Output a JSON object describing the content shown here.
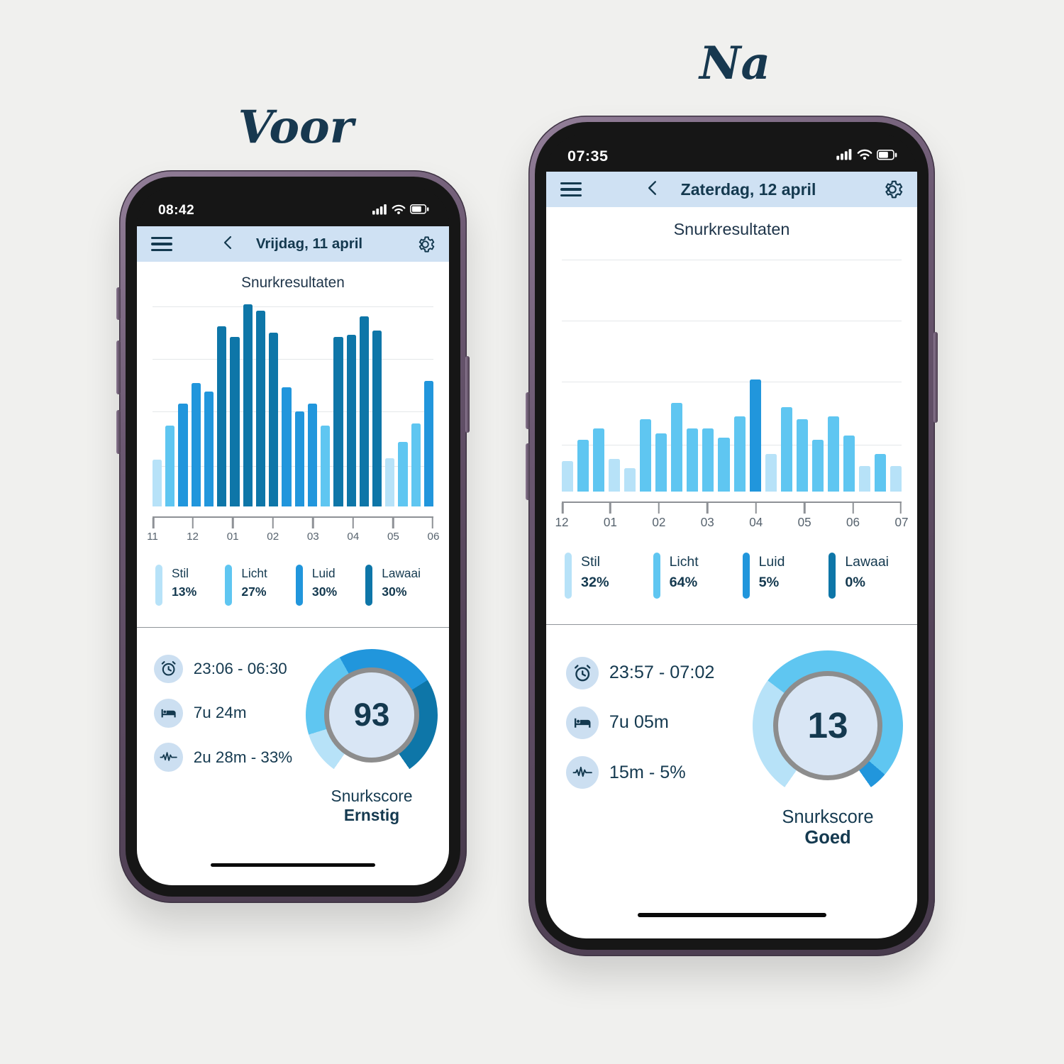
{
  "page": {
    "title_before": "Voor",
    "title_after": "Na"
  },
  "colors": {
    "stil": "#b7e2f8",
    "licht": "#5fc6f1",
    "luid": "#2196dc",
    "lawaai": "#0e76a8",
    "navy": "#14394f",
    "header_bg": "#cfe1f3",
    "gauge_center": "#d9e6f5",
    "gauge_border": "#8d8d8d"
  },
  "icons": {
    "menu": "hamburger-menu",
    "back": "chevron-left",
    "settings": "gear",
    "status": [
      "signal-bars",
      "wifi",
      "battery"
    ],
    "stats": [
      "alarm-clock",
      "bed",
      "sound-wave"
    ]
  },
  "phones": [
    {
      "id": "before",
      "status": {
        "time": "08:42"
      },
      "header": {
        "date": "Vrijdag, 11 april"
      },
      "screen_title": "Snurkresultaten",
      "chart_data": {
        "type": "bar",
        "title": "Snurkresultaten",
        "x_ticks": [
          "11",
          "12",
          "01",
          "02",
          "03",
          "04",
          "05",
          "06"
        ],
        "unit": "snore intensity per 20-min interval, % of plot height",
        "bars": [
          {
            "pct": 23,
            "cat": "stil"
          },
          {
            "pct": 40,
            "cat": "licht"
          },
          {
            "pct": 51,
            "cat": "luid"
          },
          {
            "pct": 61,
            "cat": "luid"
          },
          {
            "pct": 57,
            "cat": "luid"
          },
          {
            "pct": 89,
            "cat": "lawaai"
          },
          {
            "pct": 84,
            "cat": "lawaai"
          },
          {
            "pct": 100,
            "cat": "lawaai"
          },
          {
            "pct": 97,
            "cat": "lawaai"
          },
          {
            "pct": 86,
            "cat": "lawaai"
          },
          {
            "pct": 59,
            "cat": "luid"
          },
          {
            "pct": 47,
            "cat": "luid"
          },
          {
            "pct": 51,
            "cat": "luid"
          },
          {
            "pct": 40,
            "cat": "licht"
          },
          {
            "pct": 84,
            "cat": "lawaai"
          },
          {
            "pct": 85,
            "cat": "lawaai"
          },
          {
            "pct": 94,
            "cat": "lawaai"
          },
          {
            "pct": 87,
            "cat": "lawaai"
          },
          {
            "pct": 24,
            "cat": "stil"
          },
          {
            "pct": 32,
            "cat": "licht"
          },
          {
            "pct": 41,
            "cat": "licht"
          },
          {
            "pct": 62,
            "cat": "luid"
          }
        ]
      },
      "legend": [
        {
          "key": "stil",
          "label": "Stil",
          "value": "13%"
        },
        {
          "key": "licht",
          "label": "Licht",
          "value": "27%"
        },
        {
          "key": "luid",
          "label": "Luid",
          "value": "30%"
        },
        {
          "key": "lawaai",
          "label": "Lawaai",
          "value": "30%"
        }
      ],
      "stats": [
        {
          "icon": "alarm-clock",
          "text": "23:06 - 06:30"
        },
        {
          "icon": "bed",
          "text": "7u 24m"
        },
        {
          "icon": "sound-wave",
          "text": "2u 28m - 33%"
        }
      ],
      "gauge": {
        "score": "93",
        "label": "Snurkscore",
        "rating": "Ernstig",
        "segments": [
          {
            "key": "stil",
            "pct": 13
          },
          {
            "key": "licht",
            "pct": 27
          },
          {
            "key": "luid",
            "pct": 30
          },
          {
            "key": "lawaai",
            "pct": 30
          }
        ]
      }
    },
    {
      "id": "after",
      "status": {
        "time": "07:35"
      },
      "header": {
        "date": "Zaterdag, 12 april"
      },
      "screen_title": "Snurkresultaten",
      "chart_data": {
        "type": "bar",
        "title": "Snurkresultaten",
        "x_ticks": [
          "12",
          "01",
          "02",
          "03",
          "04",
          "05",
          "06",
          "07"
        ],
        "unit": "snore intensity per 20-min interval, % of plot height",
        "bars": [
          {
            "pct": 13,
            "cat": "stil"
          },
          {
            "pct": 22,
            "cat": "licht"
          },
          {
            "pct": 27,
            "cat": "licht"
          },
          {
            "pct": 14,
            "cat": "stil"
          },
          {
            "pct": 10,
            "cat": "stil"
          },
          {
            "pct": 31,
            "cat": "licht"
          },
          {
            "pct": 25,
            "cat": "licht"
          },
          {
            "pct": 38,
            "cat": "licht"
          },
          {
            "pct": 27,
            "cat": "licht"
          },
          {
            "pct": 27,
            "cat": "licht"
          },
          {
            "pct": 23,
            "cat": "licht"
          },
          {
            "pct": 32,
            "cat": "licht"
          },
          {
            "pct": 48,
            "cat": "luid"
          },
          {
            "pct": 16,
            "cat": "stil"
          },
          {
            "pct": 36,
            "cat": "licht"
          },
          {
            "pct": 31,
            "cat": "licht"
          },
          {
            "pct": 22,
            "cat": "licht"
          },
          {
            "pct": 32,
            "cat": "licht"
          },
          {
            "pct": 24,
            "cat": "licht"
          },
          {
            "pct": 11,
            "cat": "stil"
          },
          {
            "pct": 16,
            "cat": "licht"
          },
          {
            "pct": 11,
            "cat": "stil"
          }
        ]
      },
      "legend": [
        {
          "key": "stil",
          "label": "Stil",
          "value": "32%"
        },
        {
          "key": "licht",
          "label": "Licht",
          "value": "64%"
        },
        {
          "key": "luid",
          "label": "Luid",
          "value": "5%"
        },
        {
          "key": "lawaai",
          "label": "Lawaai",
          "value": "0%"
        }
      ],
      "stats": [
        {
          "icon": "alarm-clock",
          "text": "23:57 - 07:02"
        },
        {
          "icon": "bed",
          "text": "7u 05m"
        },
        {
          "icon": "sound-wave",
          "text": "15m - 5%"
        }
      ],
      "gauge": {
        "score": "13",
        "label": "Snurkscore",
        "rating": "Goed",
        "segments": [
          {
            "key": "stil",
            "pct": 32
          },
          {
            "key": "licht",
            "pct": 64
          },
          {
            "key": "luid",
            "pct": 5
          },
          {
            "key": "lawaai",
            "pct": 0
          }
        ]
      }
    }
  ]
}
